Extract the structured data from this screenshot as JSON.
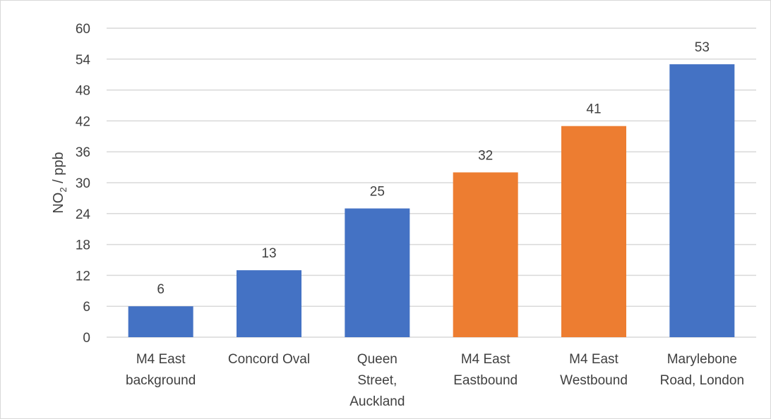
{
  "chart_data": {
    "type": "bar",
    "title": "",
    "ylabel_main": "NO",
    "ylabel_sub": "2",
    "ylabel_rest": " / ppb",
    "xlabel": "",
    "ylim": [
      0,
      60
    ],
    "yticks": [
      0,
      6,
      12,
      18,
      24,
      30,
      36,
      42,
      48,
      54,
      60
    ],
    "grid": true,
    "categories": [
      [
        "M4 East",
        "background"
      ],
      [
        "Concord Oval"
      ],
      [
        "Queen",
        "Street,",
        "Auckland"
      ],
      [
        "M4 East",
        "Eastbound"
      ],
      [
        "M4 East",
        "Westbound"
      ],
      [
        "Marylebone",
        "Road, London"
      ]
    ],
    "values": [
      6,
      13,
      25,
      32,
      41,
      53
    ],
    "bar_colors": [
      "#4472c4",
      "#4472c4",
      "#4472c4",
      "#ed7d31",
      "#ed7d31",
      "#4472c4"
    ],
    "data_labels": [
      "6",
      "13",
      "25",
      "32",
      "41",
      "53"
    ]
  }
}
